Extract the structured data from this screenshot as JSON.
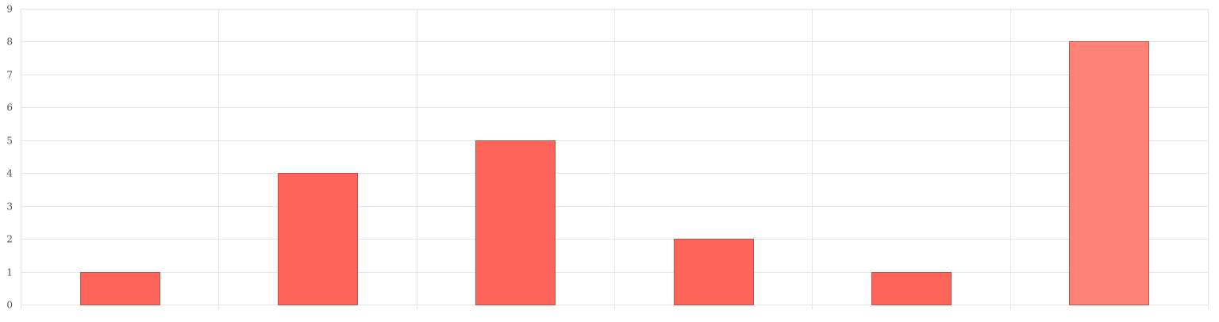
{
  "chart_data": {
    "type": "bar",
    "categories": [
      "",
      "",
      "",
      "",
      "",
      ""
    ],
    "values": [
      1,
      4,
      5,
      2,
      1,
      8
    ],
    "highlighted_index": 5,
    "title": "",
    "xlabel": "",
    "ylabel": "",
    "ylim": [
      0,
      9
    ],
    "yticks": [
      "0",
      "1",
      "2",
      "3",
      "4",
      "5",
      "6",
      "7",
      "8",
      "9"
    ],
    "grid": true,
    "legend": "none"
  },
  "colors": {
    "bar": "#ff645a",
    "bar_highlight": "#ff8278",
    "grid": "#e6e6e6",
    "text": "#555555"
  }
}
